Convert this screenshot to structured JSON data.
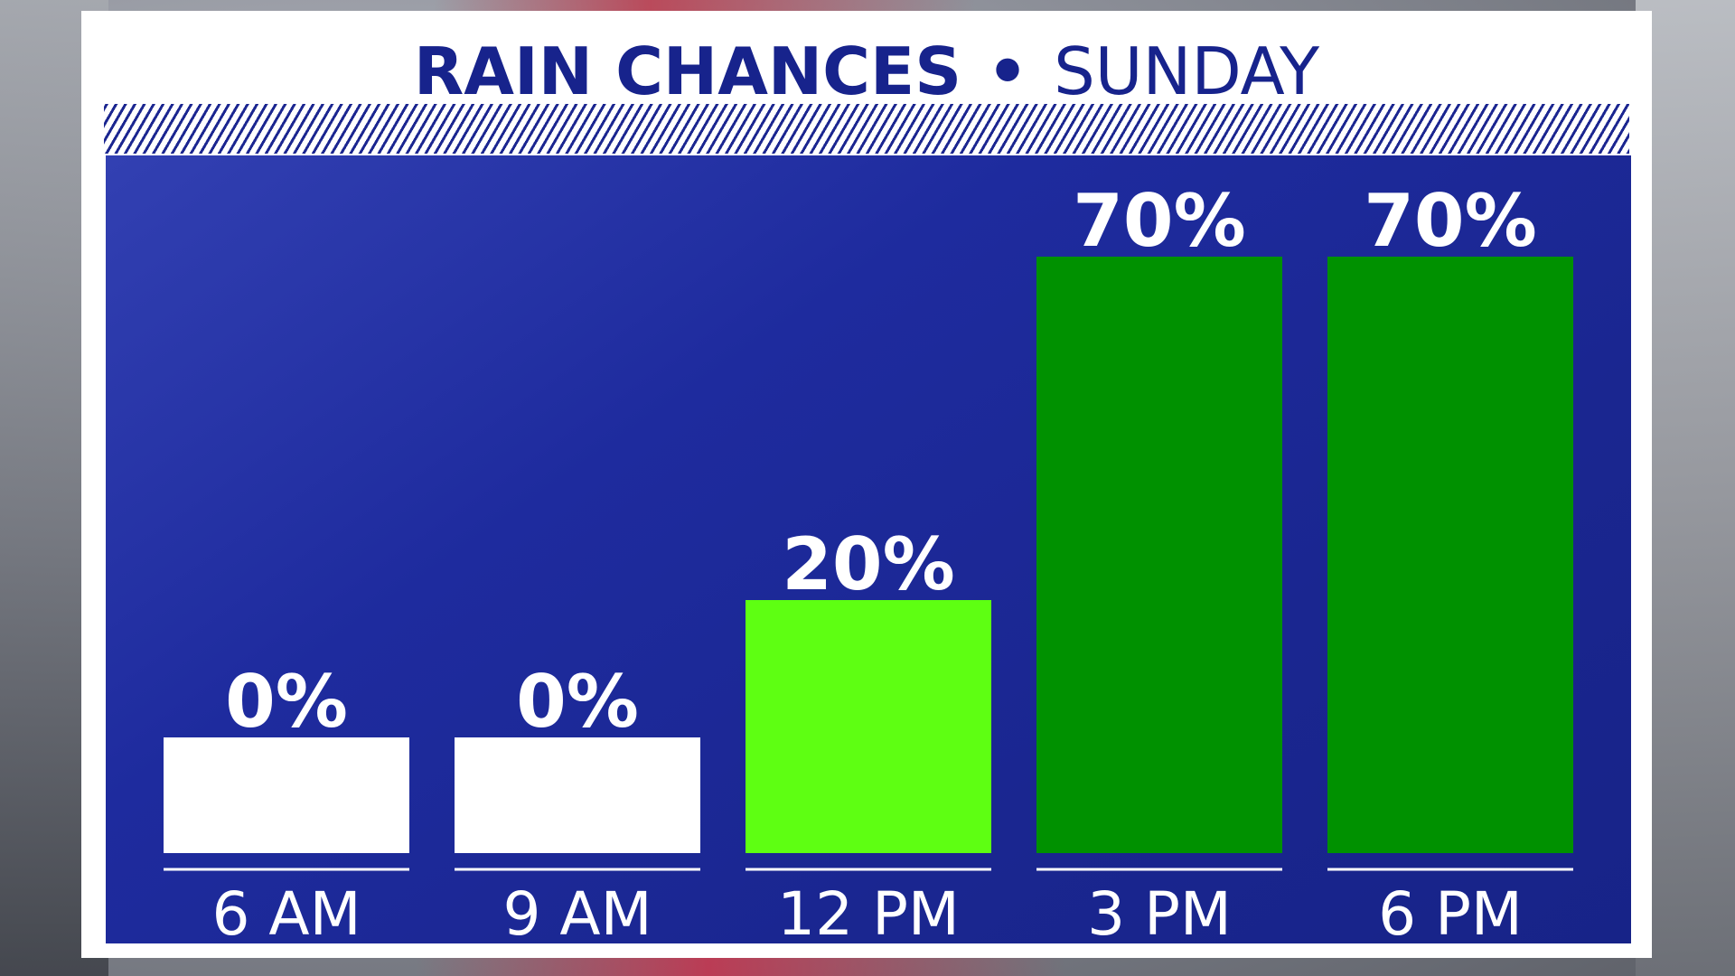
{
  "title": {
    "main": "RAIN CHANCES",
    "separator": "•",
    "day": "SUNDAY"
  },
  "colors": {
    "title": "#17238c",
    "plot_background": "#1e2b9e",
    "label_text": "#ffffff",
    "bar_zero": "#ffffff",
    "bar_low": "#5eff12",
    "bar_high": "#009100"
  },
  "chart_data": {
    "type": "bar",
    "title": "RAIN CHANCES • SUNDAY",
    "categories": [
      "6 AM",
      "9 AM",
      "12 PM",
      "3 PM",
      "6 PM"
    ],
    "values": [
      0,
      0,
      20,
      70,
      70
    ],
    "data_labels": [
      "0%",
      "0%",
      "20%",
      "70%",
      "70%"
    ],
    "bar_colors": [
      "#ffffff",
      "#ffffff",
      "#5eff12",
      "#009100",
      "#009100"
    ],
    "ylim": [
      0,
      100
    ],
    "grid": false,
    "legend": "none"
  }
}
